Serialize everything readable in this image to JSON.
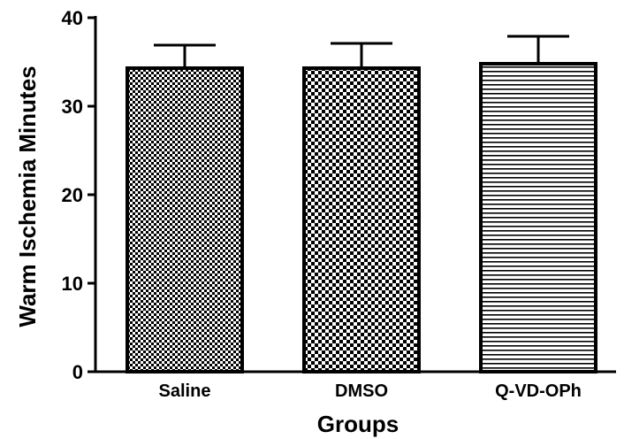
{
  "chart_data": {
    "type": "bar",
    "xlabel": "Groups",
    "ylabel": "Warm Ischemia Minutes",
    "categories": [
      "Saline",
      "DMSO",
      "Q-VD-OPh"
    ],
    "values": [
      34.3,
      34.3,
      34.8
    ],
    "error_upper": [
      36.9,
      37.1,
      37.9
    ],
    "ylim": [
      0,
      40
    ],
    "yticks": [
      "0",
      "10",
      "20",
      "30",
      "40"
    ],
    "fills": [
      "fine-checker",
      "coarse-checker",
      "horizontal-stripes"
    ],
    "bar_color": "#000000",
    "background": "#ffffff",
    "grid": false,
    "legend": "none"
  }
}
